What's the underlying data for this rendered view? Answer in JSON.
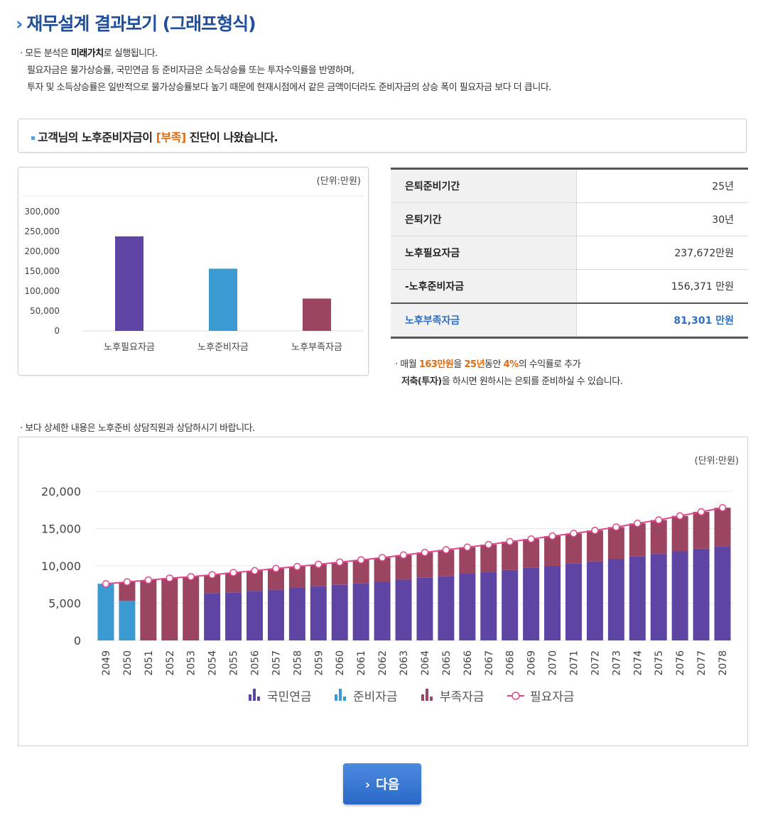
{
  "page": {
    "title": "재무설계 결과보기 (그래프형식)",
    "intro": {
      "line1_prefix": "· 모든 분석은 ",
      "line1_bold": "미래가치",
      "line1_suffix": "로 실행됩니다.",
      "line2": "필요자금은 물가상승률, 국민연금 등 준비자금은 소득상승률 또는 투자수익률을 반영하며,",
      "line3": "투자 및 소득상승률은 일반적으로 물가상승률보다 높기 때문에 현재시점에서 같은 금액이더라도 준비자금의 상승 폭이 필요자금 보다 더 큽니다."
    },
    "diagnosis": {
      "prefix": "고객님의 노후준비자금이 ",
      "highlight": "[부족]",
      "suffix": " 진단이 나왔습니다."
    },
    "summary_rows": [
      {
        "label": "은퇴준비기간",
        "value": "25년"
      },
      {
        "label": "은퇴기간",
        "value": "30년"
      },
      {
        "label": "노후필요자금",
        "value": "237,672만원"
      },
      {
        "label": "-노후준비자금",
        "value": "156,371 만원"
      },
      {
        "label": "노후부족자금",
        "value": "81,301 만원"
      }
    ],
    "advice": {
      "p1": "· 매월 ",
      "amount": "163만원",
      "p2": "을 ",
      "years": "25년",
      "p3": "동안 ",
      "rate": "4%",
      "p4": "의 수익률로 추가",
      "line2_bold": "저축(투자)",
      "line2_rest": "을 하시면 원하시는 은퇴를 준비하실 수 있습니다."
    },
    "note2": "· 보다 상세한 내용은 노후준비 상담직원과 상담하시기 바랍니다.",
    "next_button": "다음"
  },
  "colors": {
    "pension": "#5e45a3",
    "reserve": "#3b9ad1",
    "shortage": "#9b4560",
    "required_line": "#e1478a",
    "title": "#1f4f9a"
  },
  "chart_data": [
    {
      "type": "bar",
      "unit": "(단위:만원)",
      "categories": [
        "노후필요자금",
        "노후준비자금",
        "노후부족자금"
      ],
      "values": [
        237672,
        156371,
        81301
      ],
      "colors": [
        "#5e45a3",
        "#3b9ad1",
        "#9b4560"
      ],
      "ylim": [
        0,
        300000
      ],
      "yticks": [
        0,
        50000,
        100000,
        150000,
        200000,
        250000,
        300000
      ],
      "ytick_labels": [
        "0",
        "50,000",
        "100,000",
        "150,000",
        "200,000",
        "250,000",
        "300,000"
      ]
    },
    {
      "type": "bar",
      "stacked": true,
      "unit": "(단위:만원)",
      "categories": [
        "2049",
        "2050",
        "2051",
        "2052",
        "2053",
        "2054",
        "2055",
        "2056",
        "2057",
        "2058",
        "2059",
        "2060",
        "2061",
        "2062",
        "2063",
        "2064",
        "2065",
        "2066",
        "2067",
        "2068",
        "2069",
        "2070",
        "2071",
        "2072",
        "2073",
        "2074",
        "2075",
        "2076",
        "2077",
        "2078"
      ],
      "ylim": [
        0,
        20000
      ],
      "yticks": [
        0,
        5000,
        10000,
        15000,
        20000
      ],
      "ytick_labels": [
        "0",
        "5,000",
        "10,000",
        "15,000",
        "20,000"
      ],
      "series": [
        {
          "name": "국민연금",
          "kind": "bar",
          "values": [
            0,
            0,
            0,
            0,
            0,
            6300,
            6450,
            6650,
            6800,
            7050,
            7250,
            7450,
            7650,
            7900,
            8150,
            8400,
            8650,
            8950,
            9200,
            9450,
            9750,
            10000,
            10300,
            10600,
            10950,
            11250,
            11600,
            11950,
            12300,
            12650
          ]
        },
        {
          "name": "준비자금",
          "kind": "bar",
          "values": [
            7600,
            5300,
            0,
            0,
            0,
            0,
            0,
            0,
            0,
            0,
            0,
            0,
            0,
            0,
            0,
            0,
            0,
            0,
            0,
            0,
            0,
            0,
            0,
            0,
            0,
            0,
            0,
            0,
            0,
            0
          ]
        },
        {
          "name": "부족자금",
          "kind": "bar",
          "values": [
            0,
            2550,
            8100,
            8350,
            8550,
            2500,
            2650,
            2700,
            2850,
            2850,
            2950,
            3050,
            3150,
            3200,
            3300,
            3400,
            3500,
            3550,
            3650,
            3800,
            3850,
            4000,
            4050,
            4150,
            4250,
            4450,
            4550,
            4750,
            4950,
            5150
          ]
        },
        {
          "name": "필요자금",
          "kind": "line",
          "values": [
            7600,
            7850,
            8100,
            8350,
            8550,
            8800,
            9100,
            9350,
            9650,
            9900,
            10200,
            10500,
            10800,
            11100,
            11450,
            11800,
            12150,
            12500,
            12850,
            13250,
            13600,
            14000,
            14350,
            14750,
            15200,
            15700,
            16150,
            16700,
            17250,
            17800
          ]
        }
      ]
    }
  ]
}
